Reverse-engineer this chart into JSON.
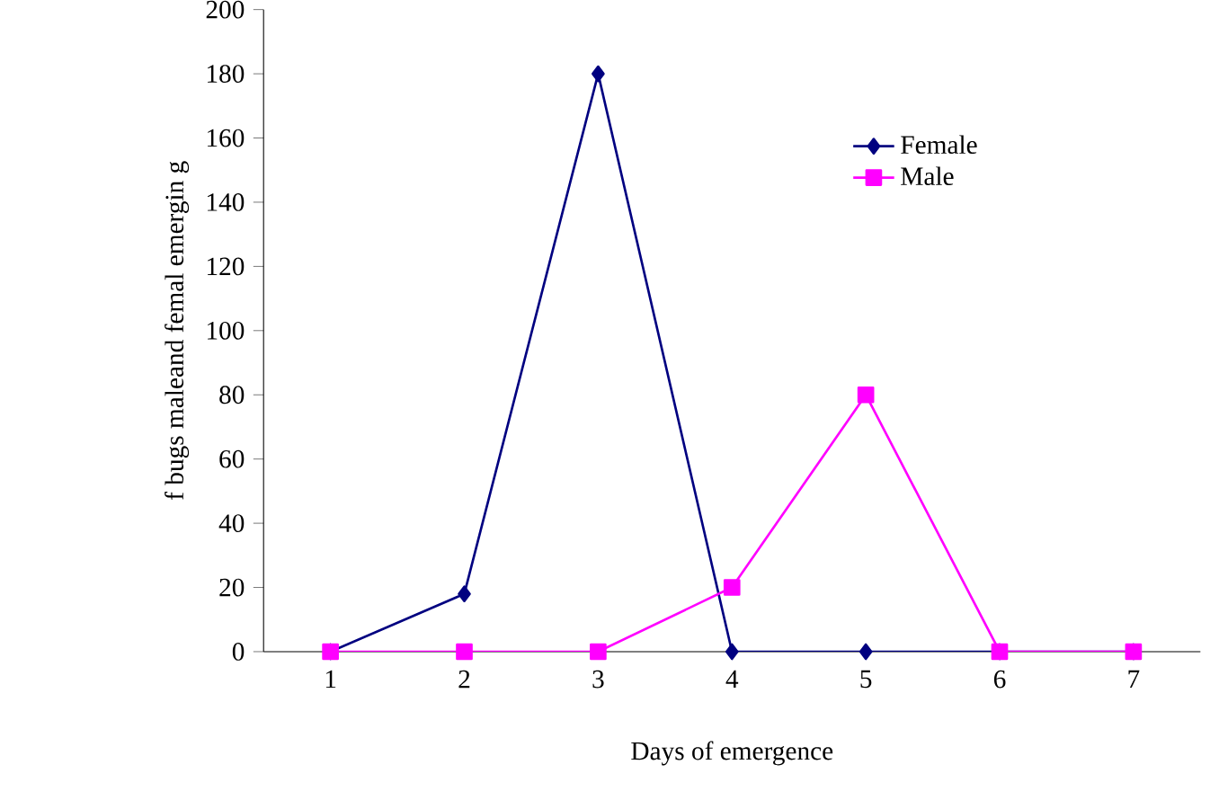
{
  "chart_data": {
    "type": "line",
    "xlabel": "Days of emergence",
    "ylabel": "f bugs maleand femal emergin g",
    "categories": [
      "1",
      "2",
      "3",
      "4",
      "5",
      "6",
      "7"
    ],
    "series": [
      {
        "name": "Female",
        "color": "#000080",
        "marker": "diamond",
        "values": [
          0,
          18,
          180,
          0,
          0,
          0,
          0
        ]
      },
      {
        "name": "Male",
        "color": "#ff00ff",
        "marker": "square",
        "values": [
          0,
          0,
          0,
          20,
          80,
          0,
          0
        ]
      }
    ],
    "ylim": [
      0,
      200
    ],
    "yticks": [
      0,
      20,
      40,
      60,
      80,
      100,
      120,
      140,
      160,
      180,
      200
    ],
    "legend": "top right",
    "grid": false,
    "line_style": "solid"
  }
}
